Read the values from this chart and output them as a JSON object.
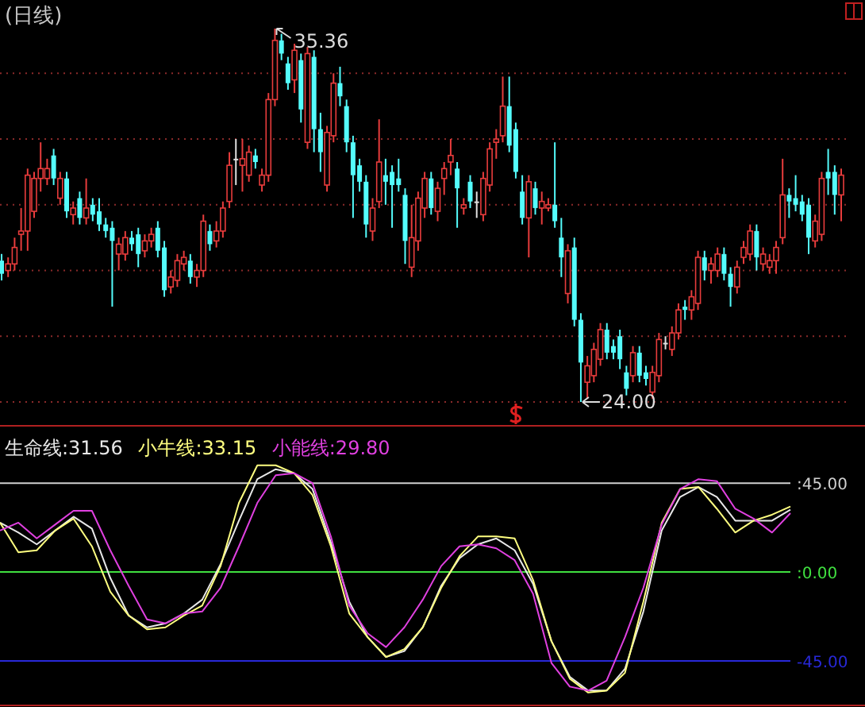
{
  "chart_data": [
    {
      "type": "candlestick",
      "title": "(日线)",
      "categories": [
        null,
        null,
        null,
        null,
        null,
        null,
        null,
        null,
        null,
        null,
        null,
        null,
        null,
        null,
        null,
        null,
        null,
        null,
        null,
        null,
        null,
        null,
        null,
        null,
        null,
        null,
        null,
        null,
        null,
        null,
        null,
        null,
        null,
        null,
        null,
        null,
        null,
        null,
        null,
        null,
        null,
        null,
        null,
        null,
        null,
        null,
        null,
        null,
        null,
        null,
        null,
        null,
        null,
        null,
        null,
        null,
        null,
        null,
        null,
        null,
        null,
        null,
        null,
        null,
        null,
        null,
        null,
        null,
        null,
        null,
        null,
        null,
        null,
        null,
        null,
        null,
        null,
        null,
        null,
        null,
        null,
        null,
        null,
        null,
        null,
        null,
        null,
        null,
        null,
        null,
        null,
        null,
        null,
        null,
        null,
        null,
        null,
        null,
        null,
        null,
        null,
        null,
        null,
        null,
        null,
        null,
        null,
        null,
        null,
        null,
        null,
        null,
        null,
        null,
        null,
        null,
        null,
        null,
        null,
        null,
        null,
        null,
        null,
        null,
        null,
        null,
        null,
        null,
        null,
        null
      ],
      "ohlc": [
        [
          28.3,
          28.5,
          27.7,
          27.9
        ],
        [
          28.0,
          28.4,
          27.8,
          28.2
        ],
        [
          28.2,
          29.0,
          28.0,
          28.7
        ],
        [
          29.1,
          29.9,
          28.6,
          29.2
        ],
        [
          29.2,
          31.1,
          28.6,
          30.9
        ],
        [
          29.8,
          31.0,
          29.6,
          30.8
        ],
        [
          30.8,
          31.9,
          30.4,
          31.1
        ],
        [
          30.8,
          31.4,
          30.6,
          31.1
        ],
        [
          31.5,
          31.7,
          30.6,
          30.8
        ],
        [
          30.2,
          31.0,
          30.0,
          30.8
        ],
        [
          30.8,
          31.0,
          29.6,
          29.8
        ],
        [
          29.7,
          30.1,
          29.4,
          29.9
        ],
        [
          30.2,
          30.4,
          29.4,
          29.6
        ],
        [
          29.6,
          30.8,
          29.4,
          29.9
        ],
        [
          30.0,
          30.2,
          29.5,
          29.7
        ],
        [
          29.8,
          30.2,
          29.2,
          29.4
        ],
        [
          29.4,
          29.6,
          29.0,
          29.2
        ],
        [
          29.3,
          29.5,
          26.9,
          28.9
        ],
        [
          28.5,
          29.0,
          28.0,
          28.8
        ],
        [
          28.5,
          29.2,
          28.3,
          29.0
        ],
        [
          29.0,
          29.2,
          28.6,
          28.8
        ],
        [
          29.1,
          29.3,
          28.1,
          28.5
        ],
        [
          28.6,
          29.1,
          28.4,
          28.9
        ],
        [
          28.9,
          29.3,
          28.7,
          29.1
        ],
        [
          29.3,
          29.5,
          28.4,
          28.6
        ],
        [
          28.7,
          28.9,
          27.2,
          27.4
        ],
        [
          27.5,
          28.0,
          27.3,
          27.8
        ],
        [
          27.7,
          28.5,
          27.5,
          28.3
        ],
        [
          28.2,
          28.6,
          28.0,
          28.4
        ],
        [
          28.3,
          28.5,
          27.6,
          27.8
        ],
        [
          27.8,
          28.2,
          27.5,
          28.0
        ],
        [
          28.0,
          29.7,
          27.8,
          29.5
        ],
        [
          29.2,
          29.4,
          28.6,
          28.8
        ],
        [
          28.9,
          29.5,
          28.7,
          29.2
        ],
        [
          29.2,
          30.1,
          29.0,
          29.9
        ],
        [
          30.1,
          31.6,
          29.9,
          31.2
        ],
        [
          31.4,
          32.0,
          30.6,
          31.4
        ],
        [
          31.2,
          32.0,
          30.4,
          31.4
        ],
        [
          30.9,
          31.8,
          30.7,
          31.6
        ],
        [
          31.5,
          31.7,
          31.1,
          31.3
        ],
        [
          30.6,
          31.1,
          30.4,
          30.9
        ],
        [
          30.9,
          33.4,
          30.7,
          33.2
        ],
        [
          33.2,
          35.36,
          33.0,
          35.0
        ],
        [
          35.0,
          35.2,
          34.4,
          34.6
        ],
        [
          34.3,
          34.5,
          33.5,
          33.7
        ],
        [
          33.8,
          34.9,
          33.4,
          34.7
        ],
        [
          34.4,
          34.6,
          32.5,
          32.9
        ],
        [
          31.9,
          34.8,
          31.7,
          34.6
        ],
        [
          34.5,
          34.7,
          31.6,
          32.3
        ],
        [
          32.3,
          32.8,
          31.0,
          31.6
        ],
        [
          30.6,
          32.4,
          30.4,
          32.2
        ],
        [
          32.1,
          34.0,
          31.9,
          33.7
        ],
        [
          33.7,
          34.2,
          33.0,
          33.3
        ],
        [
          33.0,
          33.2,
          31.6,
          31.9
        ],
        [
          31.9,
          32.1,
          29.6,
          30.9
        ],
        [
          31.2,
          31.4,
          30.4,
          30.7
        ],
        [
          30.7,
          30.9,
          29.0,
          29.4
        ],
        [
          29.2,
          30.2,
          28.9,
          29.9
        ],
        [
          30.1,
          32.6,
          29.9,
          31.3
        ],
        [
          30.9,
          31.4,
          30.0,
          30.7
        ],
        [
          31.0,
          31.2,
          29.3,
          30.6
        ],
        [
          30.8,
          31.4,
          30.4,
          30.6
        ],
        [
          30.3,
          30.5,
          28.2,
          28.9
        ],
        [
          28.1,
          30.0,
          27.8,
          29.0
        ],
        [
          28.9,
          30.4,
          28.6,
          30.2
        ],
        [
          29.9,
          31.0,
          29.6,
          30.8
        ],
        [
          30.8,
          31.0,
          29.7,
          29.9
        ],
        [
          29.8,
          30.7,
          29.5,
          30.5
        ],
        [
          30.8,
          31.3,
          30.3,
          31.1
        ],
        [
          31.3,
          32.0,
          30.9,
          31.5
        ],
        [
          31.1,
          31.3,
          29.3,
          30.5
        ],
        [
          29.9,
          30.2,
          29.7,
          30.0
        ],
        [
          30.7,
          30.9,
          29.9,
          30.1
        ],
        [
          30.1,
          30.4,
          29.6,
          30.1
        ],
        [
          29.7,
          31.0,
          29.5,
          30.8
        ],
        [
          30.6,
          31.9,
          30.4,
          31.7
        ],
        [
          31.9,
          32.3,
          31.4,
          32.0
        ],
        [
          32.1,
          33.9,
          31.9,
          33.0
        ],
        [
          33.0,
          33.9,
          31.6,
          31.8
        ],
        [
          32.3,
          32.5,
          30.8,
          31.0
        ],
        [
          30.4,
          30.9,
          29.4,
          29.6
        ],
        [
          29.6,
          30.9,
          28.4,
          30.7
        ],
        [
          30.5,
          30.7,
          29.7,
          29.9
        ],
        [
          29.9,
          30.4,
          29.4,
          30.1
        ],
        [
          29.9,
          30.2,
          29.8,
          30.0
        ],
        [
          30.0,
          31.9,
          29.3,
          29.5
        ],
        [
          29.0,
          29.6,
          27.8,
          28.4
        ],
        [
          27.3,
          28.8,
          27.0,
          28.6
        ],
        [
          28.7,
          29.0,
          26.3,
          26.5
        ],
        [
          26.5,
          26.7,
          24.0,
          25.2
        ],
        [
          24.6,
          25.4,
          24.1,
          25.1
        ],
        [
          24.8,
          25.8,
          24.6,
          25.6
        ],
        [
          25.3,
          26.4,
          25.1,
          26.2
        ],
        [
          26.2,
          26.4,
          25.3,
          25.5
        ],
        [
          25.7,
          25.9,
          25.3,
          25.5
        ],
        [
          26.0,
          26.2,
          25.0,
          25.3
        ],
        [
          24.9,
          25.1,
          24.2,
          24.4
        ],
        [
          24.8,
          25.7,
          24.6,
          25.5
        ],
        [
          25.5,
          25.7,
          24.6,
          24.8
        ],
        [
          24.9,
          25.1,
          24.5,
          24.7
        ],
        [
          24.3,
          25.1,
          24.1,
          24.9
        ],
        [
          24.8,
          26.1,
          24.6,
          25.9
        ],
        [
          25.8,
          26.0,
          25.6,
          25.8
        ],
        [
          25.6,
          26.3,
          25.4,
          26.1
        ],
        [
          26.1,
          27.0,
          25.9,
          26.8
        ],
        [
          26.9,
          27.1,
          26.5,
          26.8
        ],
        [
          26.8,
          27.4,
          26.5,
          27.2
        ],
        [
          27.0,
          28.6,
          26.8,
          28.4
        ],
        [
          28.4,
          28.6,
          27.7,
          28.0
        ],
        [
          28.0,
          28.4,
          27.6,
          28.2
        ],
        [
          28.0,
          28.7,
          27.8,
          28.5
        ],
        [
          28.5,
          28.7,
          27.7,
          27.9
        ],
        [
          27.9,
          28.1,
          26.9,
          27.5
        ],
        [
          27.5,
          28.3,
          27.3,
          28.1
        ],
        [
          28.4,
          28.9,
          28.2,
          28.7
        ],
        [
          28.5,
          29.4,
          28.3,
          29.2
        ],
        [
          29.2,
          29.4,
          28.0,
          28.4
        ],
        [
          28.2,
          28.7,
          28.0,
          28.5
        ],
        [
          28.1,
          28.5,
          27.9,
          28.3
        ],
        [
          28.3,
          28.9,
          27.9,
          28.7
        ],
        [
          29.0,
          31.4,
          28.8,
          30.3
        ],
        [
          30.3,
          30.5,
          29.6,
          30.1
        ],
        [
          30.2,
          30.9,
          29.8,
          30.0
        ],
        [
          30.1,
          30.3,
          29.5,
          29.7
        ],
        [
          30.0,
          30.2,
          28.5,
          29.0
        ],
        [
          28.9,
          29.7,
          28.7,
          29.5
        ],
        [
          29.1,
          31.0,
          28.9,
          30.8
        ],
        [
          31.0,
          31.7,
          30.3,
          30.8
        ],
        [
          31.0,
          31.2,
          29.7,
          30.3
        ],
        [
          30.3,
          31.1,
          29.5,
          30.9
        ]
      ],
      "yticks": [
        {
          "value": 24,
          "label": null
        },
        {
          "value": 26,
          "label": null
        },
        {
          "value": 28,
          "label": null
        },
        {
          "value": 30,
          "label": null
        },
        {
          "value": 32,
          "label": null
        },
        {
          "value": 34,
          "label": null
        }
      ],
      "grid": "y",
      "annotations": [
        "35.36",
        "24.00"
      ]
    },
    {
      "type": "line",
      "categories": [
        null,
        null,
        null,
        null,
        null,
        null,
        null,
        null,
        null,
        null,
        null,
        null,
        null,
        null,
        null,
        null,
        null,
        null,
        null,
        null,
        null,
        null,
        null,
        null,
        null,
        null,
        null,
        null,
        null,
        null,
        null,
        null,
        null,
        null,
        null,
        null,
        null,
        null,
        null,
        null,
        null,
        null,
        null,
        null
      ],
      "series": [
        {
          "name": "生命线:31.56",
          "color": "#e8e8e8",
          "values": [
            25,
            20,
            14,
            21,
            28,
            22,
            -3,
            -22,
            -28,
            -26,
            -21,
            -14,
            4,
            26,
            47,
            52,
            50,
            42,
            15,
            -15,
            -33,
            -43,
            -40,
            -28,
            -7,
            7,
            14,
            17,
            11,
            -6,
            -35,
            -53,
            -60,
            -60,
            -49,
            -20,
            21,
            38,
            43,
            38,
            26,
            26,
            26,
            31.56
          ]
        },
        {
          "name": "小牛线:33.15",
          "color": "#ffff80",
          "values": [
            25,
            10,
            11,
            21,
            27,
            13,
            -10,
            -22,
            -29,
            -28,
            -22,
            -17,
            3,
            35,
            54,
            54,
            50,
            39,
            13,
            -21,
            -33,
            -43,
            -39,
            -28,
            -8,
            8,
            18,
            18,
            17,
            -4,
            -35,
            -54,
            -61,
            -60,
            -51,
            -15,
            25,
            42,
            43,
            32,
            20,
            26,
            29,
            33.15
          ]
        },
        {
          "name": "小能线:29.80",
          "color": "#e040e0",
          "values": [
            21,
            25,
            17,
            24,
            31,
            31,
            11,
            -7,
            -24,
            -26,
            -21,
            -20,
            -8,
            13,
            35,
            49,
            50,
            45,
            18,
            -17,
            -31,
            -38,
            -28,
            -14,
            3,
            13,
            14,
            12,
            6,
            -11,
            -46,
            -58,
            -60,
            -55,
            -33,
            -8,
            24,
            42,
            47,
            46,
            32,
            27,
            20,
            29.8
          ]
        }
      ],
      "ylim": [
        -67.5,
        74
      ],
      "legend": "top left",
      "yticks": [
        {
          "value": 0,
          "label": ":0.00"
        },
        {
          "value": 45,
          "label": ":45.00"
        },
        {
          "value": -45,
          "label": "-45.00"
        }
      ],
      "ref_lines": [
        {
          "axis": "y",
          "value": 0,
          "color": "#40e040"
        },
        {
          "axis": "y",
          "value": 45,
          "color": "#d0d0d0"
        },
        {
          "axis": "y",
          "value": -45,
          "color": "#2828d8"
        }
      ]
    }
  ]
}
